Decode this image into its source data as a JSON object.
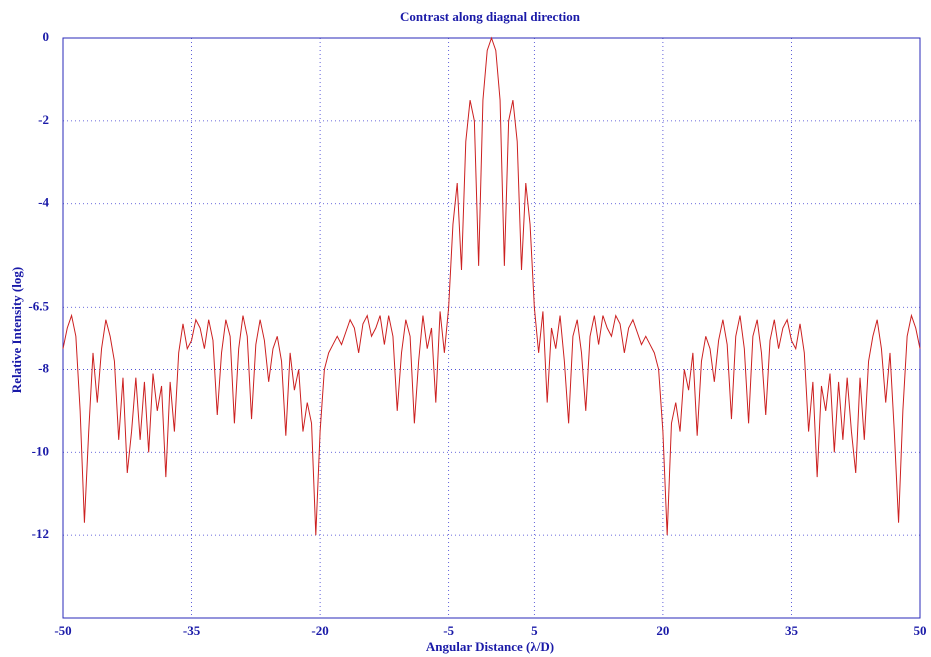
{
  "chart_data": {
    "type": "line",
    "title": "Contrast along diagnal direction",
    "x_label": "Angular Distance (λ/D)",
    "y_label": "Relative Intensity (log)",
    "xlim": [
      -50,
      50
    ],
    "ylim": [
      -14,
      0
    ],
    "xticks": [
      -50,
      -35,
      -20,
      -5,
      5,
      20,
      35,
      50
    ],
    "yticks": [
      0,
      -2,
      -4,
      -6.5,
      -8,
      -10,
      -12
    ],
    "grid": true,
    "series": [
      {
        "color": "#cc2020",
        "x": [
          -50,
          -49.5,
          -49,
          -48.5,
          -48,
          -47.5,
          -47,
          -46.5,
          -46,
          -45.5,
          -45,
          -44.5,
          -44,
          -43.5,
          -43,
          -42.5,
          -42,
          -41.5,
          -41,
          -40.5,
          -40,
          -39.5,
          -39,
          -38.5,
          -38,
          -37.5,
          -37,
          -36.5,
          -36,
          -35.5,
          -35,
          -34.5,
          -34,
          -33.5,
          -33,
          -32.5,
          -32,
          -31.5,
          -31,
          -30.5,
          -30,
          -29.5,
          -29,
          -28.5,
          -28,
          -27.5,
          -27,
          -26.5,
          -26,
          -25.5,
          -25,
          -24.5,
          -24,
          -23.5,
          -23,
          -22.5,
          -22,
          -21.5,
          -21,
          -20.5,
          -20,
          -19.5,
          -19,
          -18.5,
          -18,
          -17.5,
          -17,
          -16.5,
          -16,
          -15.5,
          -15,
          -14.5,
          -14,
          -13.5,
          -13,
          -12.5,
          -12,
          -11.5,
          -11,
          -10.5,
          -10,
          -9.5,
          -9,
          -8.5,
          -8,
          -7.5,
          -7,
          -6.5,
          -6,
          -5.5,
          -5,
          -4.5,
          -4,
          -3.5,
          -3,
          -2.5,
          -2,
          -1.5,
          -1,
          -0.5,
          0,
          0.5,
          1,
          1.5,
          2,
          2.5,
          3,
          3.5,
          4,
          4.5,
          5,
          5.5,
          6,
          6.5,
          7,
          7.5,
          8,
          8.5,
          9,
          9.5,
          10,
          10.5,
          11,
          11.5,
          12,
          12.5,
          13,
          13.5,
          14,
          14.5,
          15,
          15.5,
          16,
          16.5,
          17,
          17.5,
          18,
          18.5,
          19,
          19.5,
          20,
          20.5,
          21,
          21.5,
          22,
          22.5,
          23,
          23.5,
          24,
          24.5,
          25,
          25.5,
          26,
          26.5,
          27,
          27.5,
          28,
          28.5,
          29,
          29.5,
          30,
          30.5,
          31,
          31.5,
          32,
          32.5,
          33,
          33.5,
          34,
          34.5,
          35,
          35.5,
          36,
          36.5,
          37,
          37.5,
          38,
          38.5,
          39,
          39.5,
          40,
          40.5,
          41,
          41.5,
          42,
          42.5,
          43,
          43.5,
          44,
          44.5,
          45,
          45.5,
          46,
          46.5,
          47,
          47.5,
          48,
          48.5,
          49,
          49.5,
          50
        ],
        "values": [
          -7.5,
          -7,
          -6.7,
          -7.2,
          -9,
          -11.7,
          -9.5,
          -7.6,
          -8.8,
          -7.5,
          -6.8,
          -7.2,
          -7.8,
          -9.7,
          -8.2,
          -10.5,
          -9.5,
          -8.2,
          -9.7,
          -8.3,
          -10,
          -8.1,
          -9,
          -8.4,
          -10.6,
          -8.3,
          -9.5,
          -7.6,
          -6.9,
          -7.5,
          -7.3,
          -6.8,
          -7,
          -7.5,
          -6.8,
          -7.3,
          -9.1,
          -7.6,
          -6.8,
          -7.2,
          -9.3,
          -7.5,
          -6.7,
          -7.2,
          -9.2,
          -7.4,
          -6.8,
          -7.3,
          -8.3,
          -7.5,
          -7.2,
          -7.8,
          -9.6,
          -7.6,
          -8.5,
          -8,
          -9.5,
          -8.8,
          -9.3,
          -12,
          -9.5,
          -8,
          -7.6,
          -7.4,
          -7.2,
          -7.4,
          -7.1,
          -6.8,
          -7,
          -7.6,
          -6.9,
          -6.7,
          -7.2,
          -7,
          -6.7,
          -7.4,
          -6.7,
          -7.2,
          -9,
          -7.6,
          -6.8,
          -7.2,
          -9.3,
          -7.8,
          -6.7,
          -7.5,
          -7,
          -8.8,
          -6.6,
          -7.6,
          -6.5,
          -4.5,
          -3.5,
          -5.6,
          -2.5,
          -1.5,
          -2,
          -5.5,
          -1.5,
          -0.3,
          0,
          -0.3,
          -1.5,
          -5.5,
          -2,
          -1.5,
          -2.5,
          -5.6,
          -3.5,
          -4.5,
          -6.5,
          -7.6,
          -6.6,
          -8.8,
          -7,
          -7.5,
          -6.7,
          -7.8,
          -9.3,
          -7.2,
          -6.8,
          -7.6,
          -9,
          -7.2,
          -6.7,
          -7.4,
          -6.7,
          -7,
          -7.2,
          -6.7,
          -6.9,
          -7.6,
          -7,
          -6.8,
          -7.1,
          -7.4,
          -7.2,
          -7.4,
          -7.6,
          -8,
          -9.5,
          -12,
          -9.3,
          -8.8,
          -9.5,
          -8,
          -8.5,
          -7.6,
          -9.6,
          -7.8,
          -7.2,
          -7.5,
          -8.3,
          -7.3,
          -6.8,
          -7.4,
          -9.2,
          -7.2,
          -6.7,
          -7.5,
          -9.3,
          -7.2,
          -6.8,
          -7.6,
          -9.1,
          -7.3,
          -6.8,
          -7.5,
          -7,
          -6.8,
          -7.3,
          -7.5,
          -6.9,
          -7.6,
          -9.5,
          -8.3,
          -10.6,
          -8.4,
          -9,
          -8.1,
          -10,
          -8.3,
          -9.7,
          -8.2,
          -9.5,
          -10.5,
          -8.2,
          -9.7,
          -7.8,
          -7.2,
          -6.8,
          -7.5,
          -8.8,
          -7.6,
          -9.5,
          -11.7,
          -9,
          -7.2,
          -6.7,
          -7,
          -7.5
        ]
      }
    ]
  }
}
